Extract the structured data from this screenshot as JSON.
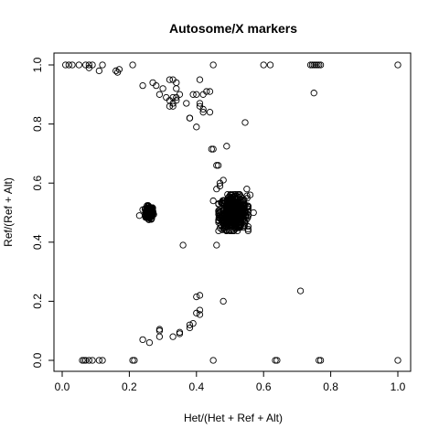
{
  "chart_data": {
    "type": "scatter",
    "title": "Autosome/X markers",
    "xlabel": "Het/(Het + Ref + Alt)",
    "ylabel": "Ref/(Ref + Alt)",
    "xlim": [
      0,
      1
    ],
    "ylim": [
      0,
      1
    ],
    "x_ticks": [
      0.0,
      0.2,
      0.4,
      0.6,
      0.8,
      1.0
    ],
    "x_tick_labels": [
      "0.0",
      "0.2",
      "0.4",
      "0.6",
      "0.8",
      "1.0"
    ],
    "y_ticks": [
      0.0,
      0.2,
      0.4,
      0.6,
      0.8,
      1.0
    ],
    "y_tick_labels": [
      "0.0",
      "0.2",
      "0.4",
      "0.6",
      "0.8",
      "1.0"
    ],
    "grid": false,
    "legend": "none",
    "marker": "open-circle",
    "marker_color": "#000000",
    "points": [
      [
        0.01,
        1.0
      ],
      [
        0.02,
        1.0
      ],
      [
        0.03,
        1.0
      ],
      [
        0.05,
        1.0
      ],
      [
        0.07,
        1.0
      ],
      [
        0.08,
        0.99
      ],
      [
        0.08,
        1.0
      ],
      [
        0.09,
        1.0
      ],
      [
        0.11,
        0.98
      ],
      [
        0.12,
        1.0
      ],
      [
        0.16,
        0.98
      ],
      [
        0.165,
        0.975
      ],
      [
        0.17,
        0.985
      ],
      [
        0.21,
        1.0
      ],
      [
        0.24,
        0.93
      ],
      [
        0.27,
        0.94
      ],
      [
        0.28,
        0.93
      ],
      [
        0.29,
        0.9
      ],
      [
        0.3,
        0.92
      ],
      [
        0.31,
        0.89
      ],
      [
        0.32,
        0.88
      ],
      [
        0.32,
        0.95
      ],
      [
        0.33,
        0.95
      ],
      [
        0.33,
        0.89
      ],
      [
        0.34,
        0.92
      ],
      [
        0.34,
        0.89
      ],
      [
        0.34,
        0.94
      ],
      [
        0.35,
        0.9
      ],
      [
        0.32,
        0.86
      ],
      [
        0.33,
        0.87
      ],
      [
        0.34,
        0.88
      ],
      [
        0.33,
        0.86
      ],
      [
        0.37,
        0.87
      ],
      [
        0.38,
        0.82
      ],
      [
        0.39,
        0.9
      ],
      [
        0.4,
        0.9
      ],
      [
        0.41,
        0.95
      ],
      [
        0.41,
        0.87
      ],
      [
        0.41,
        0.86
      ],
      [
        0.42,
        0.85
      ],
      [
        0.42,
        0.9
      ],
      [
        0.43,
        0.91
      ],
      [
        0.44,
        0.91
      ],
      [
        0.44,
        0.84
      ],
      [
        0.4,
        0.79
      ],
      [
        0.45,
        1.0
      ],
      [
        0.42,
        0.84
      ],
      [
        0.38,
        0.82
      ],
      [
        0.545,
        0.805
      ],
      [
        0.49,
        0.725
      ],
      [
        0.445,
        0.715
      ],
      [
        0.45,
        0.715
      ],
      [
        0.46,
        0.66
      ],
      [
        0.465,
        0.66
      ],
      [
        0.48,
        0.61
      ],
      [
        0.47,
        0.6
      ],
      [
        0.47,
        0.59
      ],
      [
        0.45,
        0.54
      ],
      [
        0.46,
        0.58
      ],
      [
        0.55,
        0.58
      ],
      [
        0.56,
        0.56
      ],
      [
        0.57,
        0.5
      ],
      [
        0.54,
        0.45
      ],
      [
        0.46,
        0.39
      ],
      [
        0.36,
        0.39
      ],
      [
        0.23,
        0.49
      ],
      [
        0.24,
        0.51
      ],
      [
        0.6,
        1.0
      ],
      [
        0.62,
        1.0
      ],
      [
        0.74,
        1.0
      ],
      [
        0.745,
        1.0
      ],
      [
        0.75,
        1.0
      ],
      [
        0.755,
        1.0
      ],
      [
        0.76,
        1.0
      ],
      [
        0.765,
        1.0
      ],
      [
        0.77,
        1.0
      ],
      [
        0.75,
        0.905
      ],
      [
        1.0,
        1.0
      ],
      [
        0.71,
        0.235
      ],
      [
        0.48,
        0.2
      ],
      [
        0.4,
        0.215
      ],
      [
        0.41,
        0.22
      ],
      [
        0.41,
        0.17
      ],
      [
        0.41,
        0.155
      ],
      [
        0.4,
        0.16
      ],
      [
        0.39,
        0.125
      ],
      [
        0.38,
        0.12
      ],
      [
        0.38,
        0.11
      ],
      [
        0.35,
        0.095
      ],
      [
        0.35,
        0.09
      ],
      [
        0.33,
        0.08
      ],
      [
        0.29,
        0.105
      ],
      [
        0.29,
        0.1
      ],
      [
        0.29,
        0.08
      ],
      [
        0.26,
        0.06
      ],
      [
        0.24,
        0.07
      ],
      [
        0.06,
        0.0
      ],
      [
        0.065,
        0.0
      ],
      [
        0.07,
        0.0
      ],
      [
        0.08,
        0.0
      ],
      [
        0.09,
        0.0
      ],
      [
        0.11,
        0.0
      ],
      [
        0.12,
        0.0
      ],
      [
        0.21,
        0.0
      ],
      [
        0.215,
        0.0
      ],
      [
        0.45,
        0.0
      ],
      [
        0.635,
        0.0
      ],
      [
        0.64,
        0.0
      ],
      [
        0.765,
        0.0
      ],
      [
        0.77,
        0.0
      ],
      [
        1.0,
        0.0
      ]
    ],
    "clusters": [
      {
        "center": [
          0.26,
          0.5
        ],
        "spread": [
          0.006,
          0.011
        ],
        "count": 180
      },
      {
        "center": [
          0.51,
          0.5
        ],
        "spread": [
          0.02,
          0.028
        ],
        "count": 550
      }
    ]
  }
}
